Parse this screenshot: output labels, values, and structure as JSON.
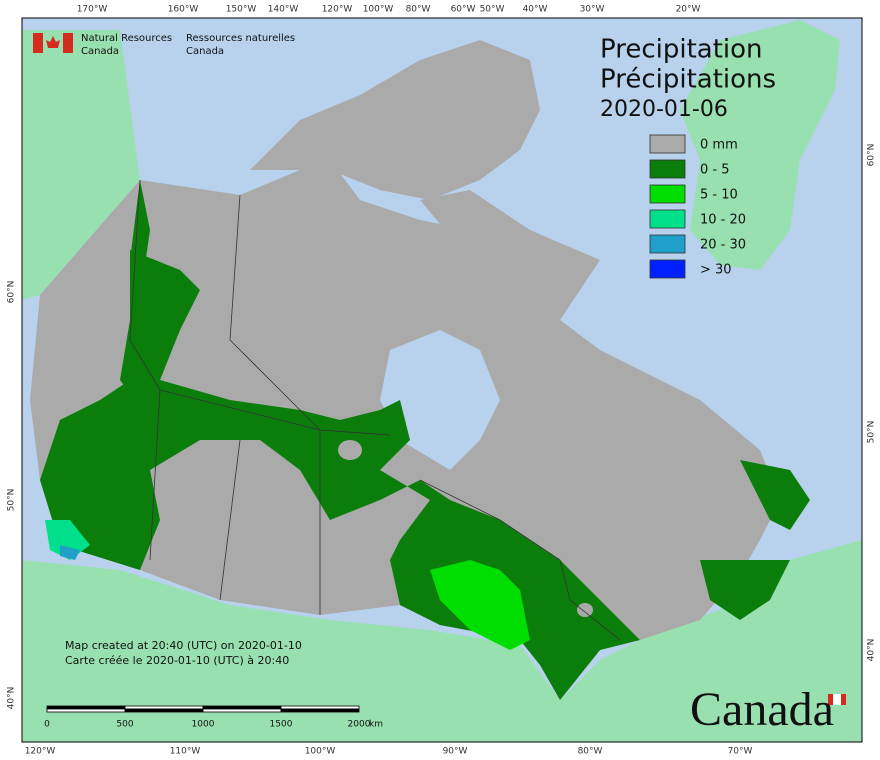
{
  "header": {
    "agency_en": [
      "Natural Resources",
      "Canada"
    ],
    "agency_fr": [
      "Ressources naturelles",
      "Canada"
    ]
  },
  "title": {
    "line1": "Precipitation",
    "line2": "Précipitations",
    "date": "2020-01-06"
  },
  "legend": [
    {
      "label": "0 mm",
      "color": "#aaaaaa"
    },
    {
      "label": "0 - 5",
      "color": "#0b7d0b"
    },
    {
      "label": "5 - 10",
      "color": "#00dd00"
    },
    {
      "label": "10 - 20",
      "color": "#00e08a"
    },
    {
      "label": "20 - 30",
      "color": "#20a0c8"
    },
    {
      "label": "> 30",
      "color": "#0020ff"
    }
  ],
  "credits": [
    "Map created at 20:40 (UTC) on 2020-01-10",
    "Carte créée le 2020-01-10 (UTC) à 20:40"
  ],
  "scale_bar": {
    "ticks": [
      "0",
      "500",
      "1000",
      "1500",
      "2000"
    ],
    "unit": "km"
  },
  "graticule": {
    "top": [
      "170°W",
      "160°W",
      "150°W",
      "140°W",
      "120°W",
      "100°W",
      "80°W",
      "60°W",
      "50°W",
      "40°W",
      "30°W",
      "20°W"
    ],
    "bottom": [
      "120°W",
      "110°W",
      "100°W",
      "90°W",
      "80°W",
      "70°W"
    ],
    "left": [
      "60°N",
      "50°N",
      "40°N"
    ],
    "right": [
      "60°N",
      "50°N",
      "40°N"
    ]
  },
  "wordmark": "Canada"
}
